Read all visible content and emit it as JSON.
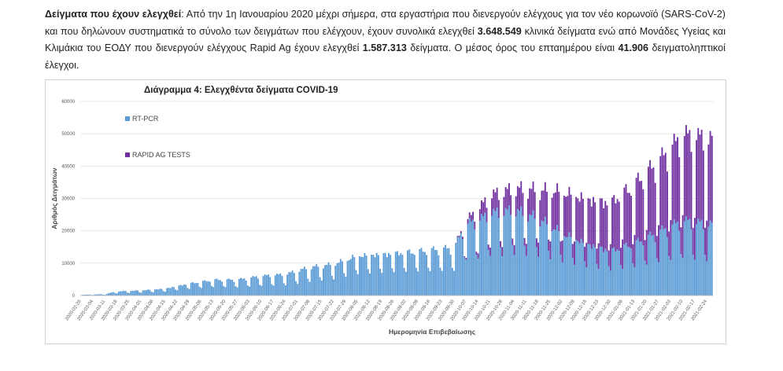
{
  "paragraph": {
    "lead": "Δείγματα που έχουν ελεγχθεί",
    "t1": ": Από την 1η Ιανουαρίου 2020 μέχρι σήμερα, στα εργαστήρια που διενεργούν ελέγχους για τον νέο κορωνοϊό (SARS-CoV-2) και που δηλώνουν συστηματικά το σύνολο των δειγμάτων που ελέγχουν, έχουν συνολικά ελεγχθεί ",
    "n1": "3.648.549",
    "t2": " κλινικά δείγματα ενώ από Μονάδες Υγείας και Κλιμάκια του ΕΟΔΥ που διενεργούν ελέγχους Rapid Ag έχουν ελεγχθεί ",
    "n2": "1.587.313",
    "t3": " δείγματα. Ο μέσος όρος του επταημέρου είναι ",
    "n3": "41.906",
    "t4": " δειγματοληπτικοί έλεγχοι."
  },
  "chart_data": {
    "type": "bar",
    "stacked": true,
    "title": "Διάγραμμα 4: Ελεγχθέντα δείγματα COVID-19",
    "xlabel": "Ημερομηνία Επιβεβαίωσης",
    "ylabel": "Αριθμός Δειγμάτων",
    "ylim": [
      0,
      60000
    ],
    "yticks": [
      0,
      10000,
      20000,
      30000,
      40000,
      50000,
      60000
    ],
    "grid": true,
    "legend": "top-left inside",
    "colors": {
      "pcr": "#5b9bd5",
      "rapid": "#7030a0"
    },
    "x_ticks": [
      "2020-02-26",
      "2020-03-04",
      "2020-03-11",
      "2020-03-18",
      "2020-03-25",
      "2020-04-01",
      "2020-04-08",
      "2020-04-15",
      "2020-04-22",
      "2020-04-29",
      "2020-05-06",
      "2020-05-13",
      "2020-05-20",
      "2020-05-27",
      "2020-06-03",
      "2020-06-10",
      "2020-06-17",
      "2020-06-24",
      "2020-07-01",
      "2020-07-08",
      "2020-07-15",
      "2020-07-22",
      "2020-07-29",
      "2020-08-05",
      "2020-08-12",
      "2020-08-19",
      "2020-08-26",
      "2020-09-02",
      "2020-09-09",
      "2020-09-16",
      "2020-09-23",
      "2020-09-30",
      "2020-10-07",
      "2020-10-14",
      "2020-10-21",
      "2020-10-28",
      "2020-11-04",
      "2020-11-11",
      "2020-11-18",
      "2020-11-25",
      "2020-12-02",
      "2020-12-09",
      "2020-12-16",
      "2020-12-23",
      "2020-12-30",
      "2021-01-06",
      "2021-01-13",
      "2021-01-20",
      "2021-01-27",
      "2021-02-03",
      "2021-02-10",
      "2021-02-17",
      "2021-02-24"
    ],
    "series": [
      {
        "name": "RT-PCR",
        "anchors": [
          [
            0,
            200
          ],
          [
            2,
            400
          ],
          [
            3,
            1200
          ],
          [
            5,
            1500
          ],
          [
            7,
            2000
          ],
          [
            9,
            3500
          ],
          [
            11,
            4500
          ],
          [
            13,
            4500
          ],
          [
            15,
            5500
          ],
          [
            17,
            6000
          ],
          [
            19,
            8000
          ],
          [
            21,
            9000
          ],
          [
            23,
            11500
          ],
          [
            25,
            12000
          ],
          [
            27,
            12500
          ],
          [
            29,
            13000
          ],
          [
            31,
            13500
          ],
          [
            32,
            20000
          ],
          [
            33,
            21000
          ],
          [
            34,
            23000
          ],
          [
            36,
            24000
          ],
          [
            38,
            22000
          ],
          [
            40,
            18000
          ],
          [
            42,
            15000
          ],
          [
            44,
            13000
          ],
          [
            46,
            15000
          ],
          [
            48,
            18000
          ],
          [
            50,
            21000
          ],
          [
            52,
            20000
          ]
        ]
      },
      {
        "name": "RAPID AG TESTS",
        "anchors": [
          [
            0,
            0
          ],
          [
            31,
            0
          ],
          [
            32,
            1000
          ],
          [
            33,
            3000
          ],
          [
            34,
            5000
          ],
          [
            36,
            6000
          ],
          [
            38,
            8000
          ],
          [
            40,
            12000
          ],
          [
            42,
            13000
          ],
          [
            44,
            14000
          ],
          [
            46,
            17000
          ],
          [
            48,
            20000
          ],
          [
            50,
            24000
          ],
          [
            52,
            24000
          ]
        ]
      }
    ]
  }
}
